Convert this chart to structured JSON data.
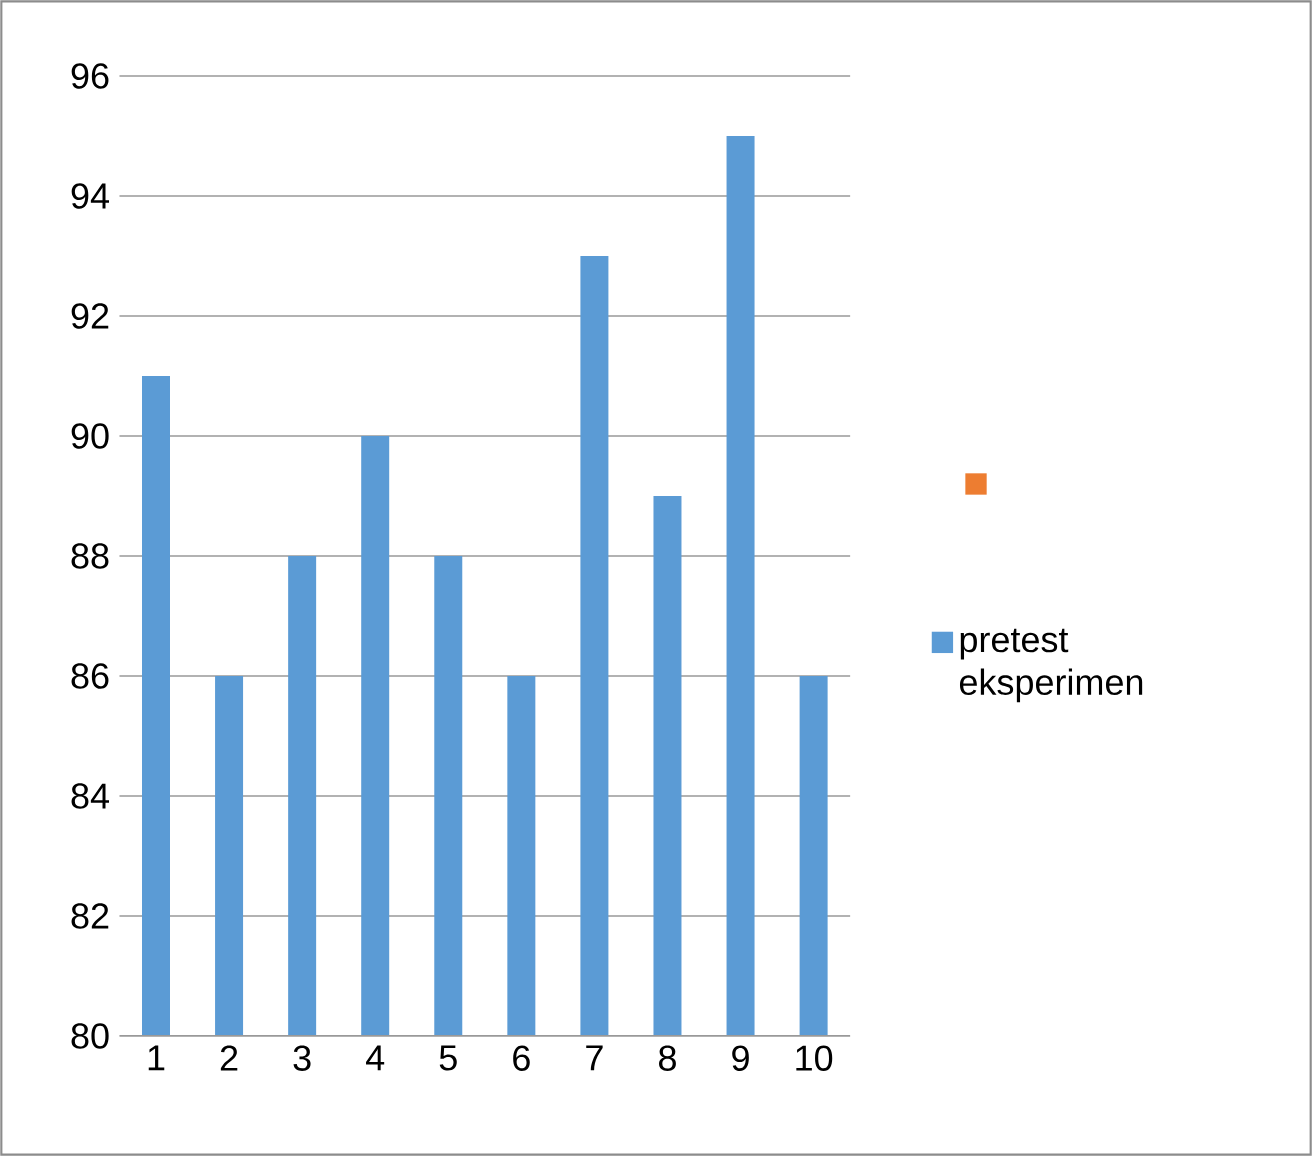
{
  "chart_data": {
    "type": "bar",
    "categories": [
      "1",
      "2",
      "3",
      "4",
      "5",
      "6",
      "7",
      "8",
      "9",
      "10"
    ],
    "series": [
      {
        "color": "#ed7d31",
        "values": [
          null,
          null,
          null,
          null,
          null,
          null,
          null,
          null,
          null,
          null
        ]
      },
      {
        "name": "pretest eksperimen",
        "color": "#5b9bd5",
        "values": [
          91,
          86,
          88,
          90,
          88,
          86,
          93,
          89,
          95,
          86
        ]
      }
    ],
    "ylim": [
      80,
      96
    ],
    "yticks": [
      80,
      82,
      84,
      86,
      88,
      90,
      92,
      94,
      96
    ],
    "grid": "y",
    "legend": "right"
  }
}
